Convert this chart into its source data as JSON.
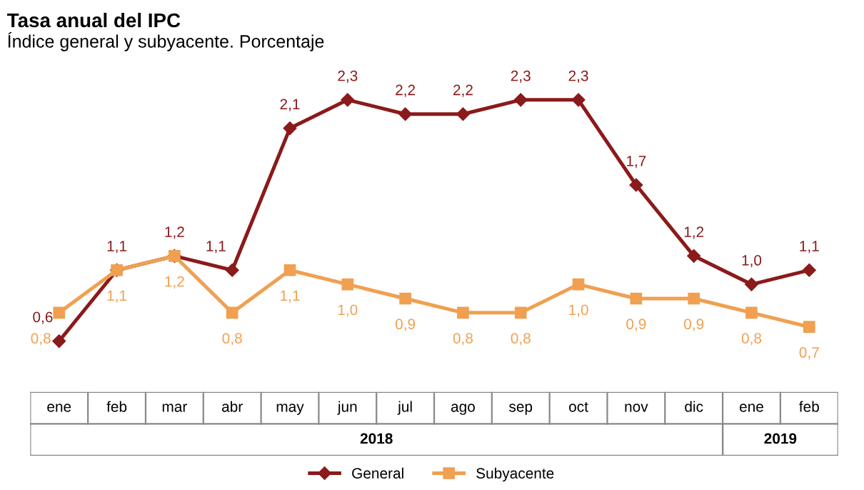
{
  "chart_data": {
    "type": "line",
    "title": "Tasa anual del IPC",
    "subtitle": "Índice general y subyacente. Porcentaje",
    "categories": [
      "ene",
      "feb",
      "mar",
      "abr",
      "may",
      "jun",
      "jul",
      "ago",
      "sep",
      "oct",
      "nov",
      "dic",
      "ene",
      "feb"
    ],
    "series": [
      {
        "name": "General",
        "color": "#8b1a1a",
        "marker": "diamond",
        "values": [
          0.6,
          1.1,
          1.2,
          1.1,
          2.1,
          2.3,
          2.2,
          2.2,
          2.3,
          2.3,
          1.7,
          1.2,
          1.0,
          1.1
        ],
        "value_labels": [
          "0,6",
          "1,1",
          "1,2",
          "1,1",
          "2,1",
          "2,3",
          "2,2",
          "2,2",
          "2,3",
          "2,3",
          "1,7",
          "1,2",
          "1,0",
          "1,1"
        ]
      },
      {
        "name": "Subyacente",
        "color": "#f0a050",
        "marker": "square",
        "values": [
          0.8,
          1.1,
          1.2,
          0.8,
          1.1,
          1.0,
          0.9,
          0.8,
          0.8,
          1.0,
          0.9,
          0.9,
          0.8,
          0.7
        ],
        "value_labels": [
          "0,8",
          "1,1",
          "1,2",
          "0,8",
          "1,1",
          "1,0",
          "0,9",
          "0,8",
          "0,8",
          "1,0",
          "0,9",
          "0,9",
          "0,8",
          "0,7"
        ]
      }
    ],
    "annotations": [
      "2018",
      "2019"
    ],
    "legend": "bottom"
  }
}
